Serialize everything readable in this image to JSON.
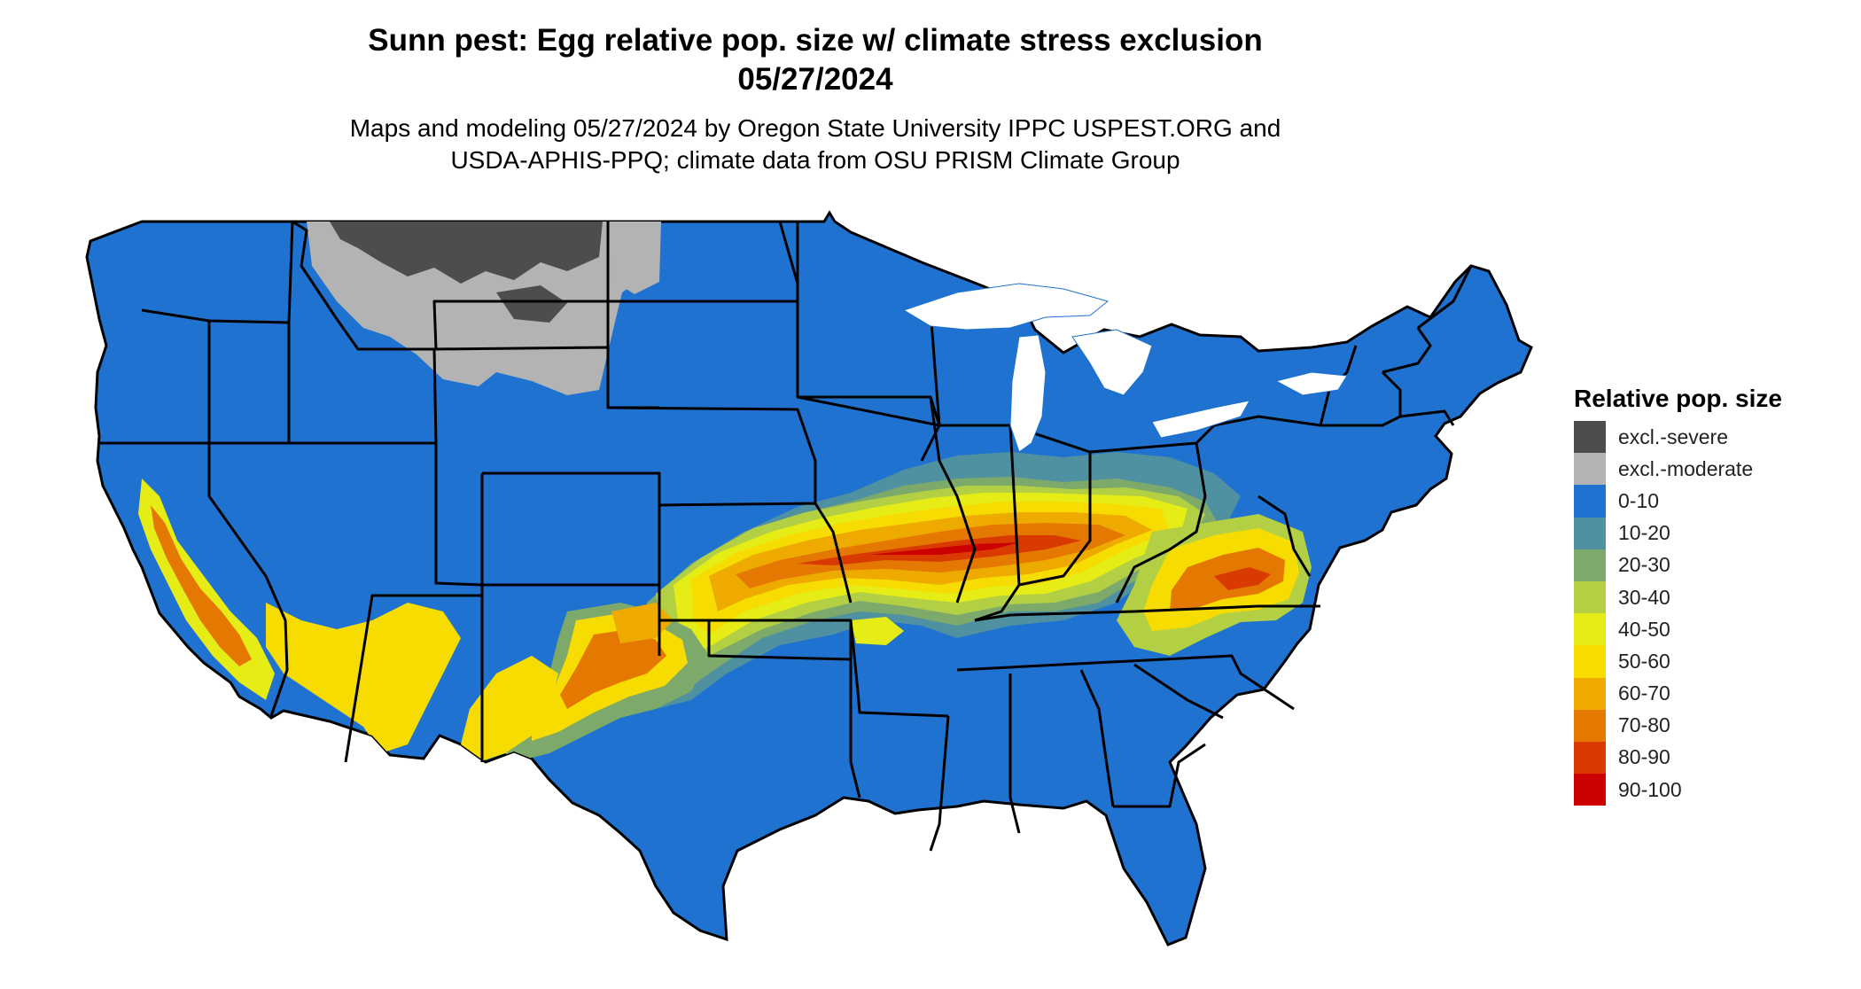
{
  "title": {
    "line1": "Sunn pest: Egg relative pop. size w/ climate stress exclusion",
    "line2": "05/27/2024"
  },
  "subtitle": {
    "line1": "Maps and modeling 05/27/2024 by Oregon State University IPPC USPEST.ORG and",
    "line2": "USDA-APHIS-PPQ; climate data from OSU PRISM Climate Group"
  },
  "legend": {
    "title": "Relative pop. size",
    "items": [
      {
        "label": "excl.-severe",
        "color": "#4d4d4d"
      },
      {
        "label": "excl.-moderate",
        "color": "#b3b3b3"
      },
      {
        "label": "0-10",
        "color": "#1f72cf"
      },
      {
        "label": "10-20",
        "color": "#4f91a0"
      },
      {
        "label": "20-30",
        "color": "#7daa6a"
      },
      {
        "label": "30-40",
        "color": "#b3d045"
      },
      {
        "label": "40-50",
        "color": "#e6ec16"
      },
      {
        "label": "50-60",
        "color": "#f6dc00"
      },
      {
        "label": "60-70",
        "color": "#efaa00"
      },
      {
        "label": "70-80",
        "color": "#e47800"
      },
      {
        "label": "80-90",
        "color": "#d83a00"
      },
      {
        "label": "90-100",
        "color": "#cc0000"
      }
    ]
  }
}
